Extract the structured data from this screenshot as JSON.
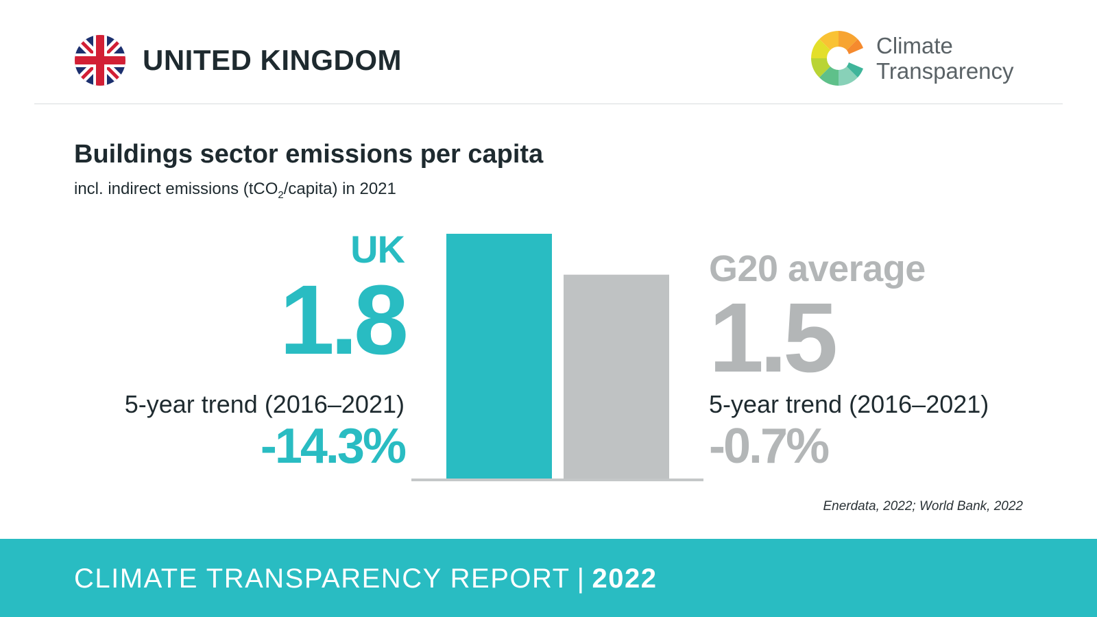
{
  "header": {
    "country": "UNITED KINGDOM",
    "logo": {
      "line1": "Climate",
      "line2": "Transparency",
      "icon": "climate-transparency-logo-icon"
    },
    "flag_icon": "union-jack-flag-icon"
  },
  "chart_data": {
    "type": "bar",
    "title": "Buildings sector emissions per capita",
    "subtitle_pre": "incl. indirect emissions (tCO",
    "subtitle_sub": "2",
    "subtitle_post": "/capita) in 2021",
    "categories": [
      "UK",
      "G20 average"
    ],
    "values": [
      1.8,
      1.5
    ],
    "value_labels": [
      "1.8",
      "1.5"
    ],
    "colors": [
      "#29bcc2",
      "#bfc2c3"
    ],
    "ylim": [
      0,
      1.8
    ],
    "grid": false,
    "legend": "none",
    "trend_label": "5-year trend (2016–2021)",
    "trends": [
      "-14.3%",
      "-0.7%"
    ]
  },
  "source": "Enerdata, 2022; World Bank, 2022",
  "footer": {
    "report": "CLIMATE TRANSPARENCY REPORT",
    "separator": "|",
    "year": "2022"
  },
  "colors": {
    "accent": "#29bcc2",
    "grey": "#bfc2c3",
    "baseline": "#c4c7c8"
  }
}
